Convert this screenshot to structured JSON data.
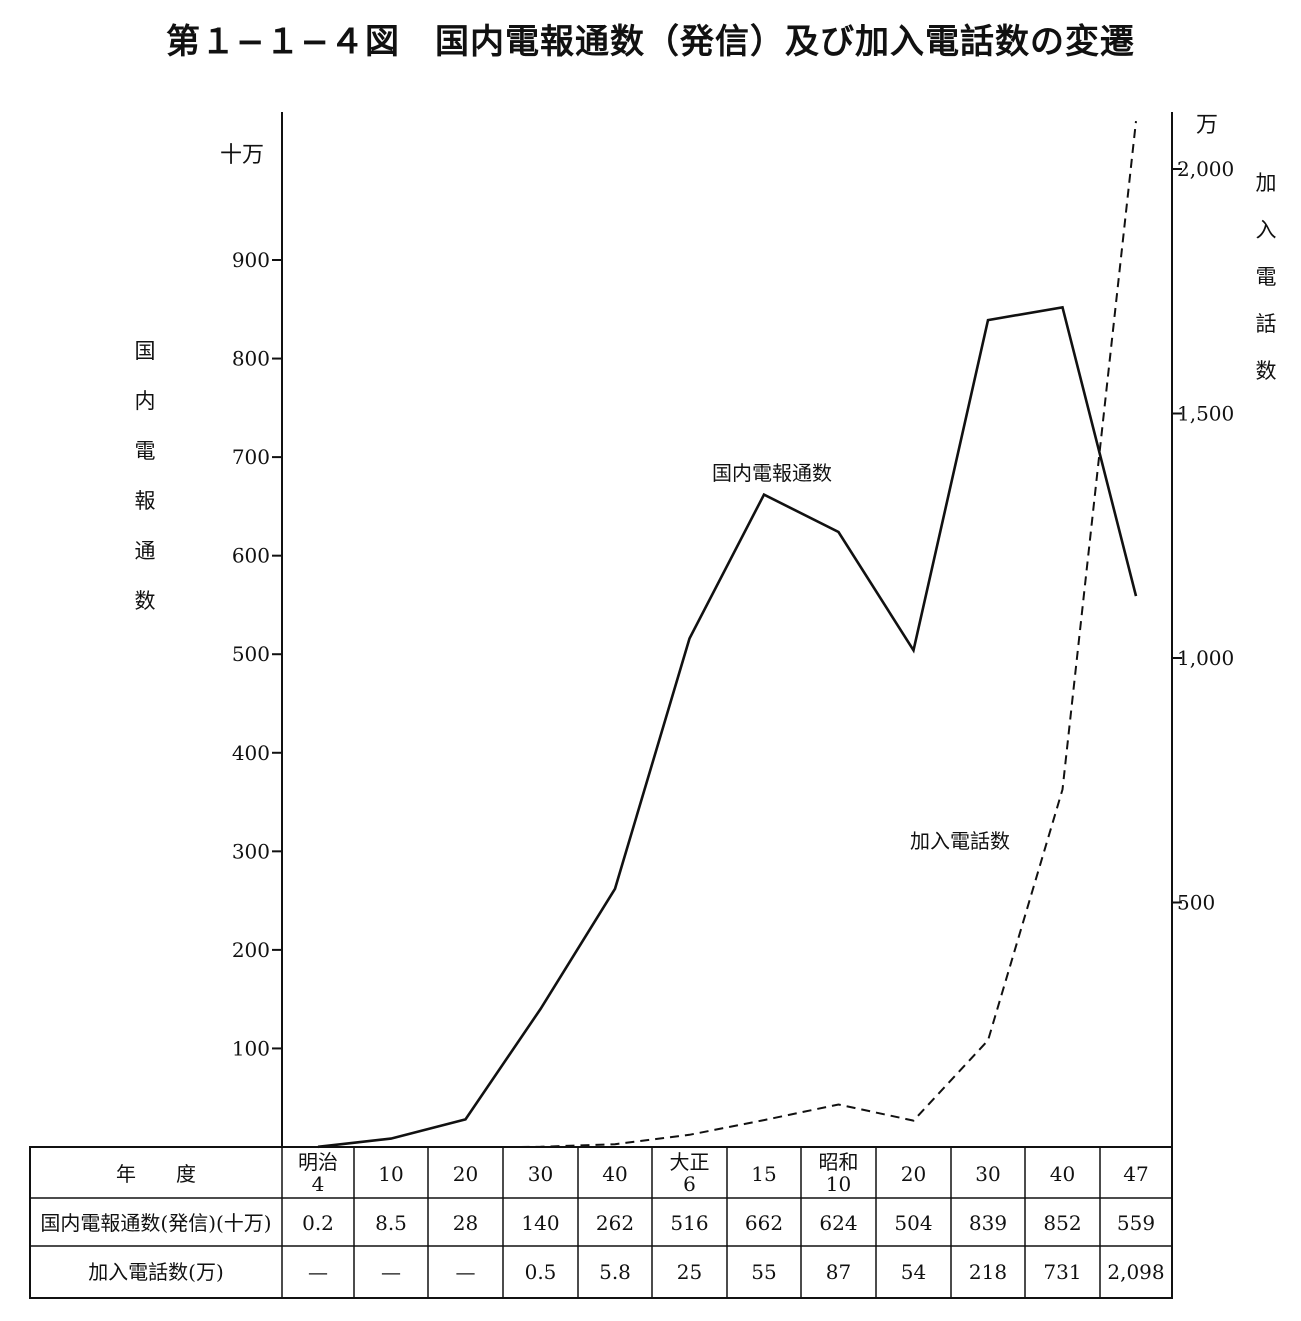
{
  "title": "第１−１−４図　国内電報通数（発信）及び加入電話数の変遷",
  "chart_data": {
    "type": "line",
    "title": "第１−１−４図　国内電報通数（発信）及び加入電話数の変遷",
    "categories": [
      "明治4",
      "10",
      "20",
      "30",
      "40",
      "大正6",
      "15",
      "昭和10",
      "20",
      "30",
      "40",
      "47"
    ],
    "category_display": [
      [
        "明治",
        "4"
      ],
      [
        "10"
      ],
      [
        "20"
      ],
      [
        "30"
      ],
      [
        "40"
      ],
      [
        "大正",
        "6"
      ],
      [
        "15"
      ],
      [
        "昭和",
        "10"
      ],
      [
        "20"
      ],
      [
        "30"
      ],
      [
        "40"
      ],
      [
        "47"
      ]
    ],
    "y_left": {
      "unit": "十万",
      "label": "国内電報通数",
      "ticks": [
        "100",
        "200",
        "300",
        "400",
        "500",
        "600",
        "700",
        "800",
        "900"
      ],
      "range": [
        0,
        1040
      ]
    },
    "y_right": {
      "unit": "万",
      "label": "加入電話数",
      "ticks": [
        "500",
        "1,000",
        "1,500",
        "2,000"
      ],
      "range": [
        0,
        2080
      ]
    },
    "series": [
      {
        "name": "国内電報通数",
        "axis": "left",
        "style": "solid",
        "values": [
          0.2,
          8.5,
          28,
          140,
          262,
          516,
          662,
          624,
          504,
          839,
          852,
          559
        ]
      },
      {
        "name": "加入電話数",
        "axis": "right",
        "style": "dashed",
        "values": [
          null,
          null,
          null,
          0.5,
          5.8,
          25,
          55,
          87,
          54,
          218,
          731,
          2098
        ]
      }
    ],
    "table": {
      "headers": [
        "年　　度",
        "国内電報通数(発信)(十万)",
        "加入電話数(万)"
      ],
      "row1": [
        "0.2",
        "8.5",
        "28",
        "140",
        "262",
        "516",
        "662",
        "624",
        "504",
        "839",
        "852",
        "559"
      ],
      "row2": [
        "—",
        "—",
        "—",
        "0.5",
        "5.8",
        "25",
        "55",
        "87",
        "54",
        "218",
        "731",
        "2,098"
      ]
    }
  }
}
